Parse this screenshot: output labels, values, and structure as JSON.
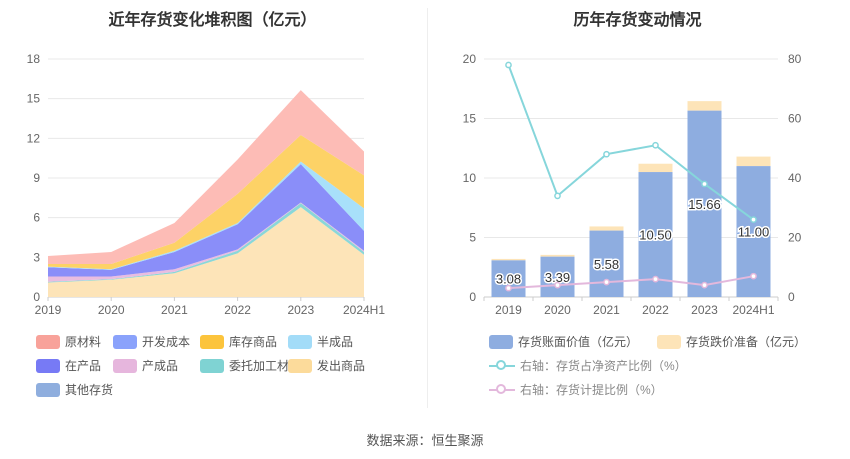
{
  "source": "数据来源：恒生聚源",
  "chart_data": [
    {
      "type": "area",
      "title": "近年存货变化堆积图（亿元）",
      "categories": [
        "2019",
        "2020",
        "2021",
        "2022",
        "2023",
        "2024H1"
      ],
      "ylim": [
        0,
        18
      ],
      "yticks": [
        0,
        3,
        6,
        9,
        12,
        15,
        18
      ],
      "series": [
        {
          "name": "发出商品",
          "color": "#fde4b8",
          "values": [
            1.1,
            1.3,
            1.8,
            3.3,
            6.8,
            3.2
          ]
        },
        {
          "name": "委托加工材料",
          "color": "#8ad7d8",
          "values": [
            0.05,
            0.05,
            0.1,
            0.2,
            0.3,
            0.2
          ]
        },
        {
          "name": "产成品",
          "color": "#e9bde0",
          "values": [
            0.4,
            0.2,
            0.2,
            0.1,
            0.05,
            0.1
          ]
        },
        {
          "name": "在产品",
          "color": "#8a8ef9",
          "values": [
            0.7,
            0.5,
            1.3,
            1.9,
            2.9,
            1.5
          ]
        },
        {
          "name": "半成品",
          "color": "#a8e0fa",
          "values": [
            0.05,
            0.05,
            0.1,
            0.1,
            0.2,
            1.7
          ]
        },
        {
          "name": "库存商品",
          "color": "#fdd266",
          "values": [
            0.2,
            0.4,
            0.6,
            2.2,
            2.0,
            2.5
          ]
        },
        {
          "name": "开发成本",
          "color": "#a3b2fd",
          "values": [
            0.0,
            0.0,
            0.0,
            0.0,
            0.0,
            0.0
          ]
        },
        {
          "name": "原材料",
          "color": "#fdbcb6",
          "values": [
            0.6,
            0.9,
            1.5,
            2.6,
            3.4,
            1.8
          ]
        },
        {
          "name": "其他存货",
          "color": "#8faede",
          "values": [
            0.0,
            0.0,
            0.0,
            0.0,
            0.0,
            0.0
          ]
        }
      ],
      "legend": [
        {
          "name": "原材料",
          "color": "#f8a29a"
        },
        {
          "name": "开发成本",
          "color": "#8aa2fb"
        },
        {
          "name": "库存商品",
          "color": "#fcc43c"
        },
        {
          "name": "半成品",
          "color": "#a3dcf8"
        },
        {
          "name": "在产品",
          "color": "#777af5"
        },
        {
          "name": "产成品",
          "color": "#e6b6dd"
        },
        {
          "name": "委托加工材料",
          "color": "#7fd3d3"
        },
        {
          "name": "发出商品",
          "color": "#fcdb9b"
        },
        {
          "name": "其他存货",
          "color": "#8faede"
        }
      ]
    },
    {
      "type": "bar",
      "title": "历年存货变动情况",
      "categories": [
        "2019",
        "2020",
        "2021",
        "2022",
        "2023",
        "2024H1"
      ],
      "ylim": [
        0,
        20
      ],
      "yticks": [
        0,
        5,
        10,
        15,
        20
      ],
      "y2lim": [
        0,
        80
      ],
      "y2ticks": [
        0,
        20,
        40,
        60,
        80
      ],
      "series": [
        {
          "name": "存货账面价值（亿元）",
          "color": "#8eade0",
          "values": [
            3.08,
            3.39,
            5.58,
            10.5,
            15.66,
            11.0
          ],
          "labels": [
            "3.08",
            "3.39",
            "5.58",
            "10.50",
            "15.66",
            "11.00"
          ]
        },
        {
          "name": "存货跌价准备（亿元）",
          "color": "#fde4b8",
          "values": [
            0.12,
            0.15,
            0.35,
            0.7,
            0.8,
            0.8
          ]
        },
        {
          "name": "右轴：存货占净资产比例（%）",
          "color": "#86d6db",
          "axis": "right",
          "values": [
            78,
            34,
            48,
            51,
            38,
            26
          ]
        },
        {
          "name": "右轴：存货计提比例（%）",
          "color": "#e3b8dc",
          "axis": "right",
          "values": [
            3,
            4,
            5,
            6,
            4,
            7
          ]
        }
      ]
    }
  ]
}
